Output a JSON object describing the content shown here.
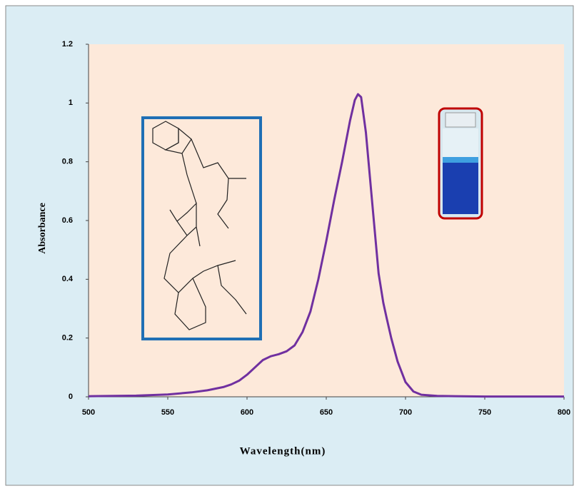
{
  "chart_data": {
    "type": "line",
    "x_label": "Wavelength(nm)",
    "y_label": "Absorbance",
    "xlim": [
      500,
      800
    ],
    "ylim": [
      0,
      1.2
    ],
    "xticks": [
      500,
      550,
      600,
      650,
      700,
      750,
      800
    ],
    "yticks": [
      0,
      0.2,
      0.4,
      0.6,
      0.8,
      1,
      1.2
    ],
    "series": [
      {
        "name": null,
        "color": "#7030a0",
        "x": [
          500,
          530,
          550,
          565,
          575,
          585,
          590,
          595,
          600,
          605,
          610,
          615,
          620,
          625,
          630,
          635,
          640,
          645,
          650,
          655,
          660,
          665,
          668,
          670,
          672,
          675,
          680,
          683,
          686,
          688,
          691,
          695,
          700,
          705,
          710,
          720,
          750,
          800
        ],
        "values": [
          0.002,
          0.004,
          0.008,
          0.015,
          0.022,
          0.033,
          0.042,
          0.055,
          0.075,
          0.1,
          0.125,
          0.138,
          0.145,
          0.155,
          0.175,
          0.22,
          0.29,
          0.4,
          0.53,
          0.67,
          0.8,
          0.94,
          1.01,
          1.03,
          1.02,
          0.9,
          0.6,
          0.42,
          0.32,
          0.27,
          0.2,
          0.12,
          0.05,
          0.018,
          0.007,
          0.003,
          0.001,
          0.001
        ]
      }
    ]
  }
}
